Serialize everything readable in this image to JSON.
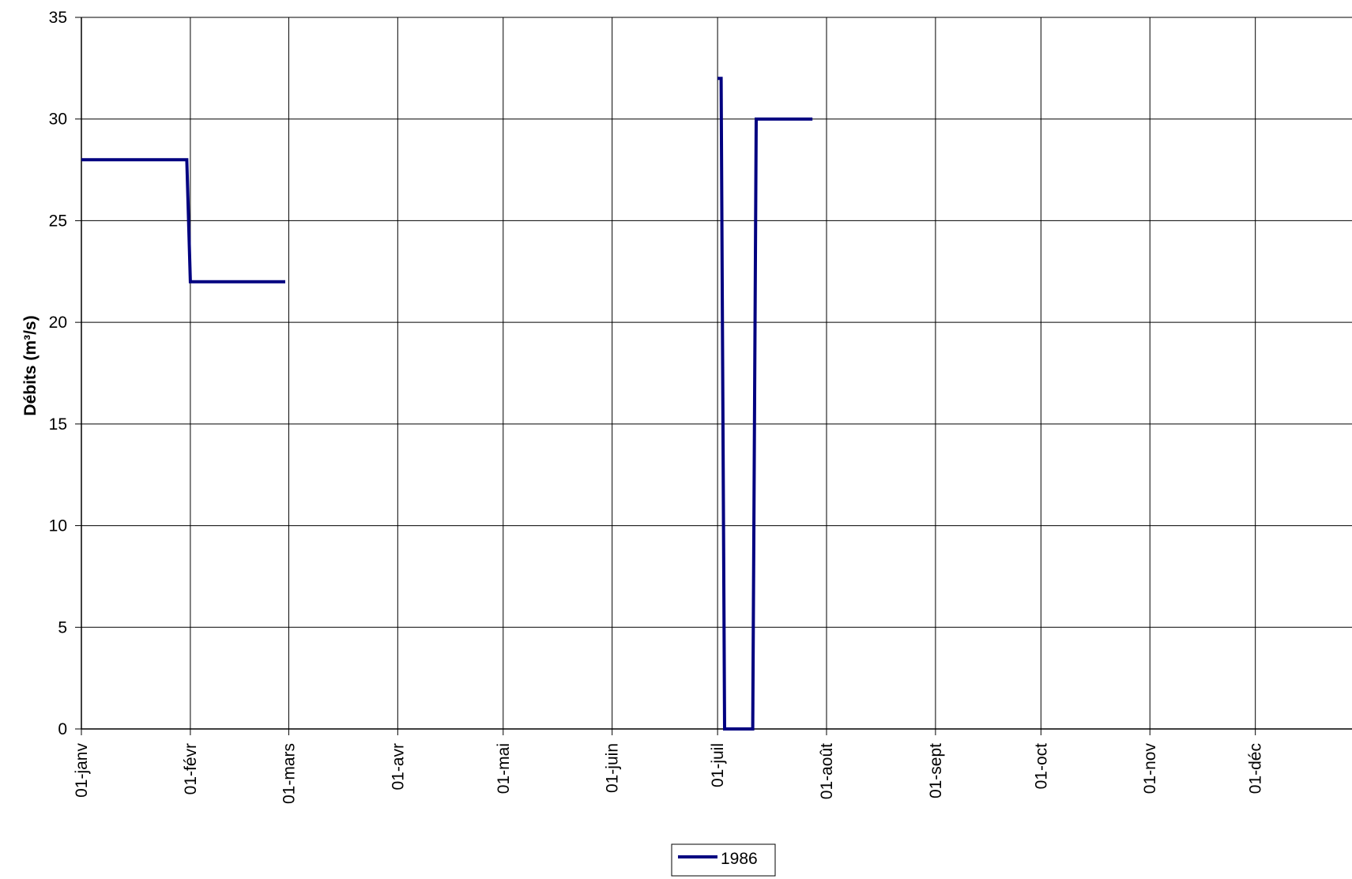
{
  "chart_data": {
    "type": "line",
    "title": "",
    "xlabel": "",
    "ylabel": "Débits (m³/s)",
    "ylim": [
      0,
      35
    ],
    "yticks": [
      "0",
      "5",
      "10",
      "15",
      "20",
      "25",
      "30",
      "35"
    ],
    "xlim": [
      "1986-01-01",
      "1986-12-31"
    ],
    "xticks": [
      {
        "date": "1986-01-01",
        "label": "01-janv"
      },
      {
        "date": "1986-02-01",
        "label": "01-févr"
      },
      {
        "date": "1986-03-01",
        "label": "01-mars"
      },
      {
        "date": "1986-04-01",
        "label": "01-avr"
      },
      {
        "date": "1986-05-01",
        "label": "01-mai"
      },
      {
        "date": "1986-06-01",
        "label": "01-juin"
      },
      {
        "date": "1986-07-01",
        "label": "01-juil"
      },
      {
        "date": "1986-08-01",
        "label": "01-août"
      },
      {
        "date": "1986-09-01",
        "label": "01-sept"
      },
      {
        "date": "1986-10-01",
        "label": "01-oct"
      },
      {
        "date": "1986-11-01",
        "label": "01-nov"
      },
      {
        "date": "1986-12-01",
        "label": "01-déc"
      }
    ],
    "grid": true,
    "legend_position": "bottom-center",
    "series": [
      {
        "name": "1986",
        "color": "#000080",
        "segments": [
          [
            {
              "x": "1986-01-01",
              "y": 28
            },
            {
              "x": "1986-01-31",
              "y": 28
            },
            {
              "x": "1986-02-01",
              "y": 22
            },
            {
              "x": "1986-02-28",
              "y": 22
            }
          ],
          [
            {
              "x": "1986-07-01",
              "y": 32
            },
            {
              "x": "1986-07-02",
              "y": 32
            },
            {
              "x": "1986-07-03",
              "y": 0
            },
            {
              "x": "1986-07-11",
              "y": 0
            },
            {
              "x": "1986-07-12",
              "y": 30
            },
            {
              "x": "1986-07-28",
              "y": 30
            }
          ]
        ]
      }
    ]
  }
}
